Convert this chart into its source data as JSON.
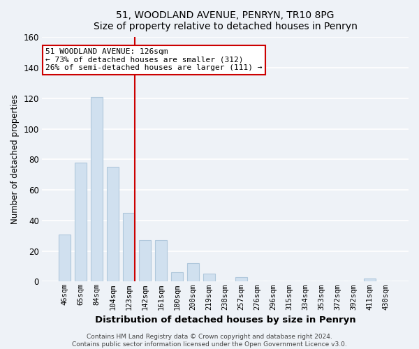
{
  "title": "51, WOODLAND AVENUE, PENRYN, TR10 8PG",
  "subtitle": "Size of property relative to detached houses in Penryn",
  "xlabel": "Distribution of detached houses by size in Penryn",
  "ylabel": "Number of detached properties",
  "bar_labels": [
    "46sqm",
    "65sqm",
    "84sqm",
    "104sqm",
    "123sqm",
    "142sqm",
    "161sqm",
    "180sqm",
    "200sqm",
    "219sqm",
    "238sqm",
    "257sqm",
    "276sqm",
    "296sqm",
    "315sqm",
    "334sqm",
    "353sqm",
    "372sqm",
    "392sqm",
    "411sqm",
    "430sqm"
  ],
  "bar_heights": [
    31,
    78,
    121,
    75,
    45,
    27,
    27,
    6,
    12,
    5,
    0,
    3,
    0,
    0,
    0,
    0,
    0,
    0,
    0,
    2,
    0
  ],
  "bar_color": "#d0e0ef",
  "bar_edge_color": "#b0c8dc",
  "highlight_line_color": "#cc0000",
  "annotation_text": "51 WOODLAND AVENUE: 126sqm\n← 73% of detached houses are smaller (312)\n26% of semi-detached houses are larger (111) →",
  "annotation_box_color": "#ffffff",
  "annotation_box_edge": "#cc0000",
  "ylim": [
    0,
    160
  ],
  "yticks": [
    0,
    20,
    40,
    60,
    80,
    100,
    120,
    140,
    160
  ],
  "footer_line1": "Contains HM Land Registry data © Crown copyright and database right 2024.",
  "footer_line2": "Contains public sector information licensed under the Open Government Licence v3.0.",
  "bg_color": "#eef2f7",
  "plot_bg_color": "#eef2f7",
  "grid_color": "#ffffff"
}
